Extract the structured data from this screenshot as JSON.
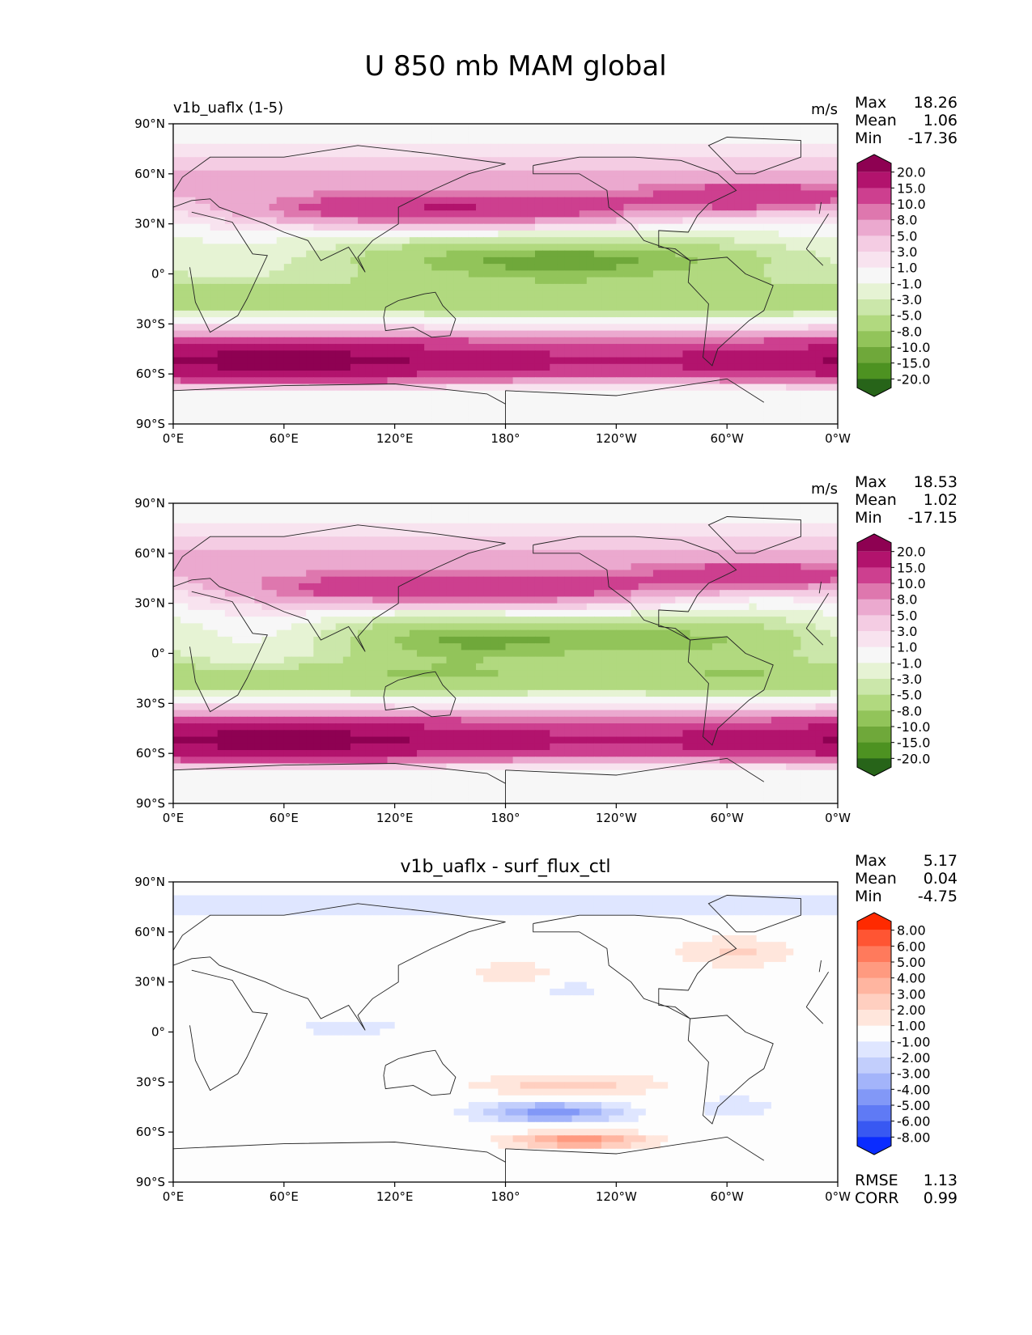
{
  "figure_title": "U 850 mb MAM global",
  "chart_data": [
    {
      "type": "heatmap",
      "title": "",
      "left_label": "v1b_uaflx (1-5)",
      "units": "m/s",
      "stats": {
        "max_label": "Max",
        "max": "18.26",
        "mean_label": "Mean",
        "mean": "1.06",
        "min_label": "Min",
        "min": "-17.36"
      },
      "xticks": [
        "0°E",
        "60°E",
        "120°E",
        "180°",
        "120°W",
        "60°W",
        "0°W"
      ],
      "yticks": [
        "90°N",
        "60°N",
        "30°N",
        "0°",
        "30°S",
        "60°S",
        "90°S"
      ],
      "xlim": [
        0,
        360
      ],
      "ylim": [
        -90,
        90
      ],
      "colorbar": {
        "levels": [
          "20.0",
          "15.0",
          "10.0",
          "8.0",
          "5.0",
          "3.0",
          "1.0",
          "-1.0",
          "-3.0",
          "-5.0",
          "-8.0",
          "-10.0",
          "-15.0",
          "-20.0"
        ],
        "colors": [
          "#8e0152",
          "#b2136d",
          "#cd3f8f",
          "#de77ae",
          "#eba9cf",
          "#f4cce3",
          "#f8e3ef",
          "#f7f7f7",
          "#e6f3d4",
          "#cbe7aa",
          "#b1d97f",
          "#92c45a",
          "#6fa83a",
          "#4d9221",
          "#276419"
        ]
      }
    },
    {
      "type": "heatmap",
      "title": "",
      "left_label": "",
      "units": "m/s",
      "stats": {
        "max_label": "Max",
        "max": "18.53",
        "mean_label": "Mean",
        "mean": "1.02",
        "min_label": "Min",
        "min": "-17.15"
      },
      "xticks": [
        "0°E",
        "60°E",
        "120°E",
        "180°",
        "120°W",
        "60°W",
        "0°W"
      ],
      "yticks": [
        "90°N",
        "60°N",
        "30°N",
        "0°",
        "30°S",
        "60°S",
        "90°S"
      ],
      "xlim": [
        0,
        360
      ],
      "ylim": [
        -90,
        90
      ],
      "colorbar": {
        "levels": [
          "20.0",
          "15.0",
          "10.0",
          "8.0",
          "5.0",
          "3.0",
          "1.0",
          "-1.0",
          "-3.0",
          "-5.0",
          "-8.0",
          "-10.0",
          "-15.0",
          "-20.0"
        ],
        "colors": [
          "#8e0152",
          "#b2136d",
          "#cd3f8f",
          "#de77ae",
          "#eba9cf",
          "#f4cce3",
          "#f8e3ef",
          "#f7f7f7",
          "#e6f3d4",
          "#cbe7aa",
          "#b1d97f",
          "#92c45a",
          "#6fa83a",
          "#4d9221",
          "#276419"
        ]
      }
    },
    {
      "type": "heatmap",
      "title": "v1b_uaflx - surf_flux_ctl",
      "left_label": "",
      "units": "",
      "stats": {
        "max_label": "Max",
        "max": "5.17",
        "mean_label": "Mean",
        "mean": "0.04",
        "min_label": "Min",
        "min": "-4.75"
      },
      "extra_stats": {
        "rmse_label": "RMSE",
        "rmse": "1.13",
        "corr_label": "CORR",
        "corr": "0.99"
      },
      "xticks": [
        "0°E",
        "60°E",
        "120°E",
        "180°",
        "120°W",
        "60°W",
        "0°W"
      ],
      "yticks": [
        "90°N",
        "60°N",
        "30°N",
        "0°",
        "30°S",
        "60°S",
        "90°S"
      ],
      "xlim": [
        0,
        360
      ],
      "ylim": [
        -90,
        90
      ],
      "colorbar": {
        "levels": [
          "8.00",
          "6.00",
          "5.00",
          "4.00",
          "3.00",
          "2.00",
          "1.00",
          "-1.00",
          "-2.00",
          "-3.00",
          "-4.00",
          "-5.00",
          "-6.00",
          "-8.00"
        ],
        "colors": [
          "#ff2a00",
          "#ff5533",
          "#ff7a5c",
          "#ff9a80",
          "#ffb5a0",
          "#ffcfc0",
          "#ffe6dc",
          "#fdfdfd",
          "#dfe6ff",
          "#c2cefc",
          "#a3b4fa",
          "#8298f7",
          "#5f7af5",
          "#3858f2",
          "#0a2cff"
        ]
      }
    }
  ]
}
